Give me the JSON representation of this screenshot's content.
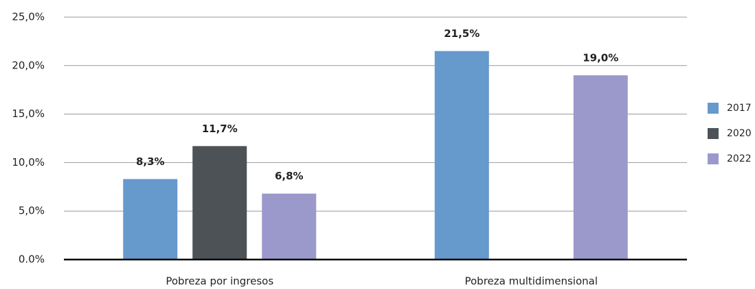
{
  "chart_data": {
    "type": "bar",
    "categories": [
      "Pobreza por ingresos",
      "Pobreza multidimensional"
    ],
    "series": [
      {
        "name": "2017",
        "color": "#6699cc",
        "values": [
          8.3,
          21.5
        ],
        "value_labels": [
          "8,3%",
          "21,5%"
        ]
      },
      {
        "name": "2020",
        "color": "#4d5257",
        "values": [
          11.7,
          null
        ],
        "value_labels": [
          "11,7%",
          null
        ]
      },
      {
        "name": "2022",
        "color": "#9b99cc",
        "values": [
          6.8,
          19.0
        ],
        "value_labels": [
          "6,8%",
          "19,0%"
        ]
      }
    ],
    "ylim": [
      0,
      25
    ],
    "yticks": [
      {
        "value": 0,
        "label": "0.0%"
      },
      {
        "value": 5,
        "label": "5,0%"
      },
      {
        "value": 10,
        "label": "10,0%"
      },
      {
        "value": 15,
        "label": "15,0%"
      },
      {
        "value": 20,
        "label": "20,0%"
      },
      {
        "value": 25,
        "label": "25,0%"
      }
    ],
    "grid": true,
    "legend": "right"
  }
}
